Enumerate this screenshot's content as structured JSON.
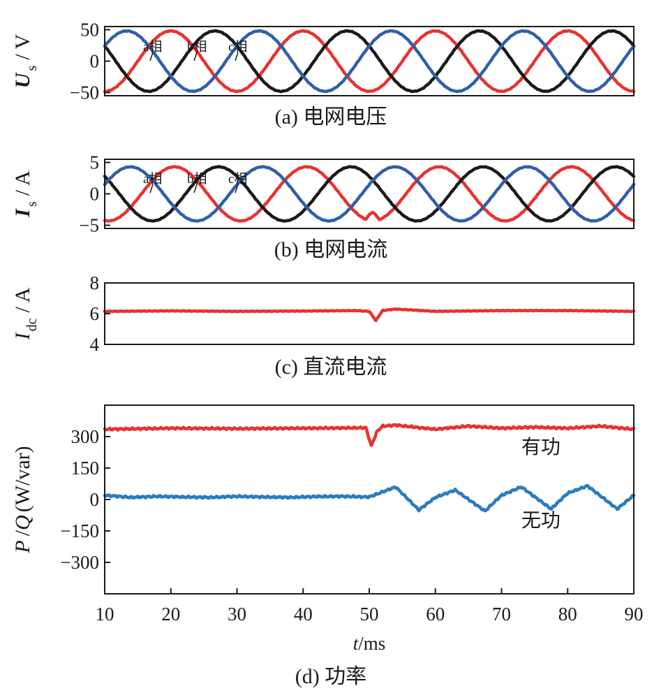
{
  "colors": {
    "phase_a": "#e8322f",
    "phase_b": "#1a1a1a",
    "phase_c": "#2f5fa8",
    "idc": "#e8322f",
    "active_power": "#e8322f",
    "reactive_power": "#2b7bbd",
    "axis": "#1a1a1a"
  },
  "chart_data": [
    {
      "type": "line",
      "caption": "(a)  电网电压",
      "ylabel_main": "U",
      "ylabel_sub": "s",
      "ylabel_unit": "/ V",
      "xlim": [
        10,
        90
      ],
      "ylim": [
        -55,
        55
      ],
      "yticks": [
        50,
        0,
        -50
      ],
      "ytick_labels": [
        "50",
        "0",
        "−50"
      ],
      "phase_labels": [
        "a相",
        "b相",
        "c相"
      ],
      "frequency_hz": 50,
      "series": [
        {
          "name": "a相",
          "color": "#e8322f",
          "amplitude": 48,
          "phase_deg": 90,
          "disturbance": false
        },
        {
          "name": "b相",
          "color": "#1a1a1a",
          "amplitude": 48,
          "phase_deg": -30,
          "disturbance": false
        },
        {
          "name": "c相",
          "color": "#2f5fa8",
          "amplitude": 48,
          "phase_deg": -150,
          "disturbance": false
        }
      ]
    },
    {
      "type": "line",
      "caption": "(b)  电网电流",
      "ylabel_main": "I",
      "ylabel_sub": "s",
      "ylabel_unit": "/ A",
      "xlim": [
        10,
        90
      ],
      "ylim": [
        -5.5,
        5.5
      ],
      "yticks": [
        5,
        0,
        -5
      ],
      "ytick_labels": [
        "5",
        "0",
        "−5"
      ],
      "phase_labels": [
        "a相",
        "b相",
        "c相"
      ],
      "frequency_hz": 50,
      "series": [
        {
          "name": "a相",
          "color": "#e8322f",
          "amplitude": 4.3,
          "phase_deg": 80,
          "disturbance": true
        },
        {
          "name": "b相",
          "color": "#1a1a1a",
          "amplitude": 4.3,
          "phase_deg": -40,
          "disturbance": false
        },
        {
          "name": "c相",
          "color": "#2f5fa8",
          "amplitude": 4.3,
          "phase_deg": -160,
          "disturbance": false
        }
      ]
    },
    {
      "type": "line",
      "caption": "(c)  直流电流",
      "ylabel_main": "I",
      "ylabel_sub": "dc",
      "ylabel_unit": "/ A",
      "xlim": [
        10,
        90
      ],
      "ylim": [
        4,
        8
      ],
      "yticks": [
        8,
        6,
        4
      ],
      "ytick_labels": [
        "8",
        "6",
        "4"
      ],
      "series": [
        {
          "name": "Idc",
          "color": "#e8322f",
          "x": [
            10,
            20,
            30,
            40,
            48,
            50,
            51,
            52,
            54,
            60,
            70,
            80,
            90
          ],
          "y": [
            6.15,
            6.18,
            6.15,
            6.17,
            6.2,
            6.15,
            5.55,
            6.2,
            6.3,
            6.15,
            6.2,
            6.2,
            6.15
          ]
        }
      ]
    },
    {
      "type": "line",
      "caption": "(d) 功率",
      "ylabel_main": "P",
      "ylabel_mid": "/",
      "ylabel_main2": "Q",
      "ylabel_unit": "(W/var)",
      "xlabel_main": "t",
      "xlabel_unit": "/ms",
      "xlim": [
        10,
        90
      ],
      "ylim": [
        -450,
        450
      ],
      "yticks": [
        300,
        150,
        0,
        -150,
        -300
      ],
      "ytick_labels": [
        "300",
        "150",
        "0",
        "−150",
        "−300"
      ],
      "xticks": [
        10,
        20,
        30,
        40,
        50,
        60,
        70,
        80,
        90
      ],
      "xtick_labels": [
        "10",
        "20",
        "30",
        "40",
        "50",
        "60",
        "70",
        "80",
        "90"
      ],
      "annotations": [
        {
          "text": "有功",
          "x": 73,
          "y": 220
        },
        {
          "text": "无功",
          "x": 73,
          "y": -130
        }
      ],
      "series": [
        {
          "name": "有功",
          "color": "#e8322f",
          "x": [
            10,
            20,
            30,
            40,
            49.5,
            50.3,
            51.2,
            52,
            54,
            56,
            60,
            65,
            70,
            75,
            80,
            85,
            90
          ],
          "y": [
            335,
            340,
            338,
            340,
            342,
            255,
            325,
            350,
            355,
            348,
            335,
            350,
            340,
            345,
            340,
            350,
            335
          ]
        },
        {
          "name": "无功",
          "color": "#2b7bbd",
          "x": [
            10,
            14,
            18,
            22,
            26,
            30,
            34,
            38,
            42,
            46,
            50,
            54,
            57.5,
            60,
            63,
            67.5,
            70,
            73,
            77.5,
            80,
            83,
            87.5,
            90
          ],
          "y": [
            20,
            10,
            15,
            12,
            10,
            15,
            12,
            10,
            14,
            15,
            12,
            60,
            -50,
            10,
            45,
            -55,
            20,
            60,
            -45,
            30,
            65,
            -45,
            20
          ]
        }
      ]
    }
  ]
}
